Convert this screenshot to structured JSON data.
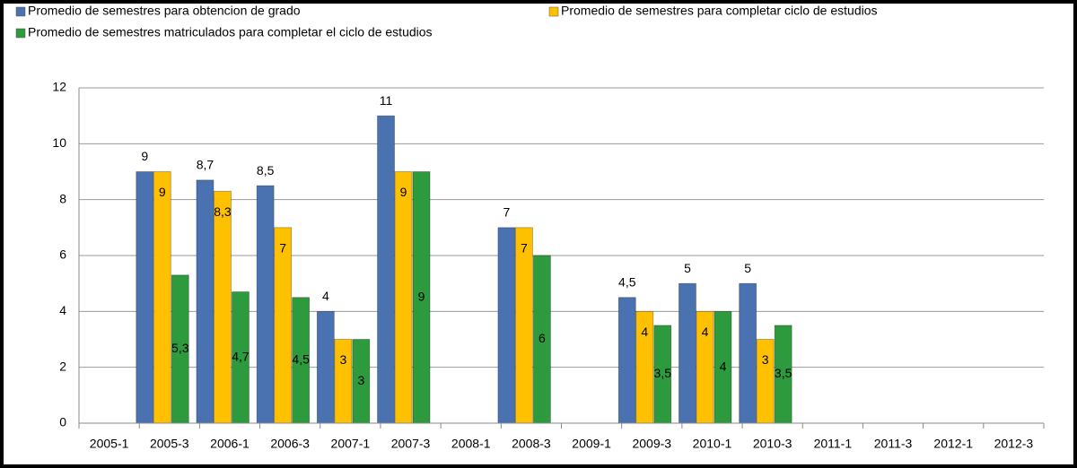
{
  "chart_data": {
    "type": "bar",
    "categories": [
      "2005-1",
      "2005-3",
      "2006-1",
      "2006-3",
      "2007-1",
      "2007-3",
      "2008-1",
      "2008-3",
      "2009-1",
      "2009-3",
      "2010-1",
      "2010-3",
      "2011-1",
      "2011-3",
      "2012-1",
      "2012-3"
    ],
    "series": [
      {
        "name": "Promedio de semestres para obtencion de grado",
        "color": "#4a72b0",
        "values": [
          null,
          9,
          8.7,
          8.5,
          4,
          11,
          null,
          7,
          null,
          4.5,
          5,
          5,
          null,
          null,
          null,
          null
        ],
        "value_labels": [
          null,
          "9",
          "8,7",
          "8,5",
          "4",
          "11",
          null,
          "7",
          null,
          "4,5",
          "5",
          "5",
          null,
          null,
          null,
          null
        ]
      },
      {
        "name": "Promedio de semestres para completar ciclo de estudios",
        "color": "#ffc000",
        "values": [
          null,
          9,
          8.3,
          7,
          3,
          9,
          null,
          7,
          null,
          4,
          4,
          3,
          null,
          null,
          null,
          null
        ],
        "value_labels": [
          null,
          "9",
          "8,3",
          "7",
          "3",
          "9",
          null,
          "7",
          null,
          "4",
          "4",
          "3",
          null,
          null,
          null,
          null
        ]
      },
      {
        "name": "Promedio de semestres matriculados para completar el ciclo de estudios",
        "color": "#2e9a3e",
        "values": [
          null,
          5.3,
          4.7,
          4.5,
          3,
          9,
          null,
          6,
          null,
          3.5,
          4,
          3.5,
          null,
          null,
          null,
          null
        ],
        "value_labels": [
          null,
          "5,3",
          "4,7",
          "4,5",
          "3",
          "9",
          null,
          "6",
          null,
          "3,5",
          "4",
          "3,5",
          null,
          null,
          null,
          null
        ]
      }
    ],
    "ylim": [
      0,
      12
    ],
    "yticks": [
      0,
      2,
      4,
      6,
      8,
      10,
      12
    ],
    "grid": true,
    "legend": "top"
  }
}
